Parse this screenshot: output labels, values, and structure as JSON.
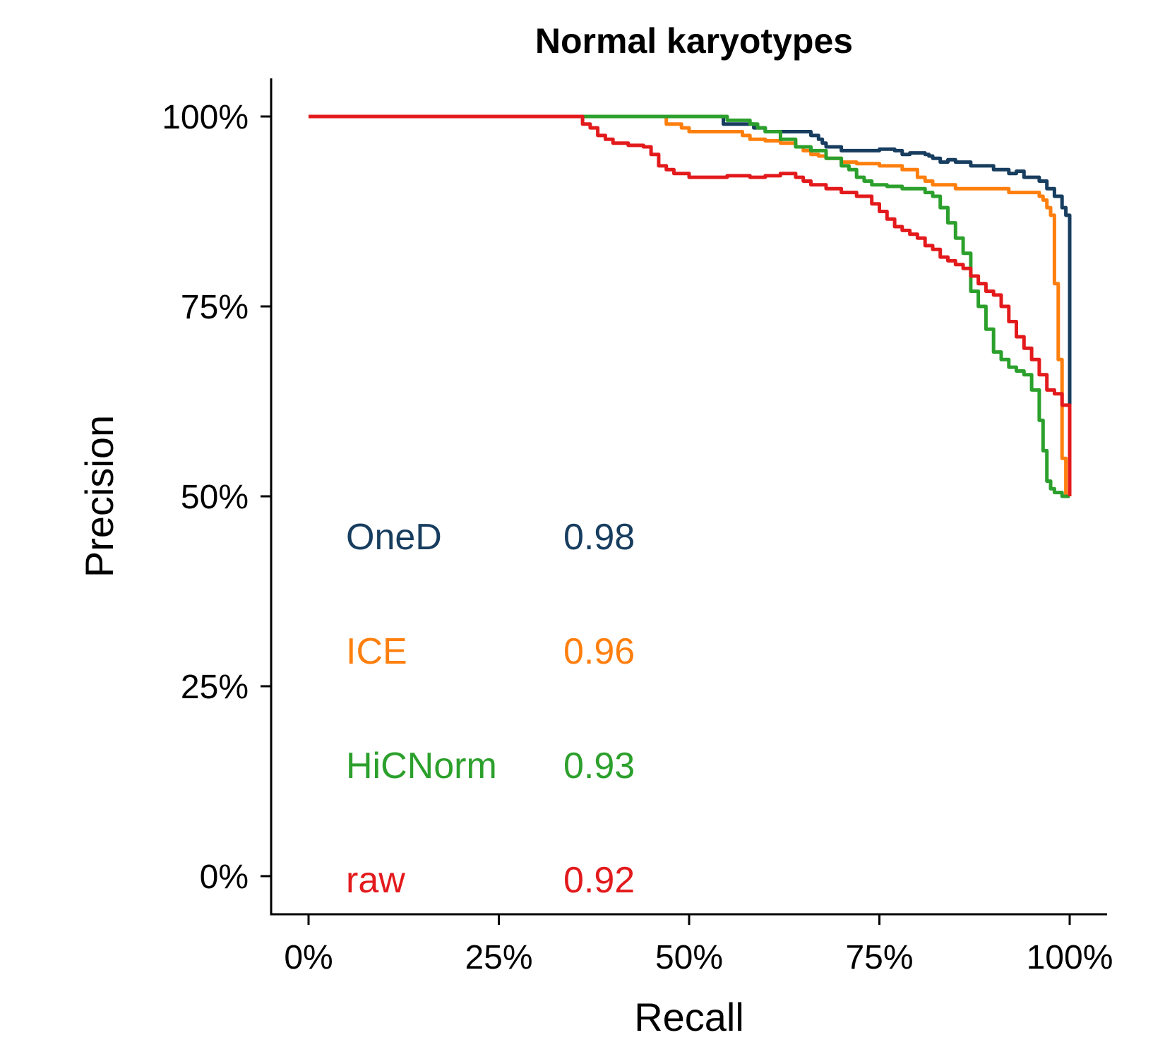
{
  "chart_data": {
    "type": "line",
    "title": "Normal karyotypes",
    "xlabel": "Recall",
    "ylabel": "Precision",
    "xlim": [
      -0.05,
      1.05
    ],
    "ylim": [
      -0.05,
      1.05
    ],
    "x_ticks": [
      0,
      0.25,
      0.5,
      0.75,
      1.0
    ],
    "x_tick_labels": [
      "0%",
      "25%",
      "50%",
      "75%",
      "100%"
    ],
    "y_ticks": [
      0,
      0.25,
      0.5,
      0.75,
      1.0
    ],
    "y_tick_labels": [
      "0%",
      "25%",
      "50%",
      "75%",
      "100%"
    ],
    "grid": false,
    "legend": "none",
    "annotations": [
      {
        "label": "OneD",
        "value": "0.98",
        "color": "#173d5f"
      },
      {
        "label": "ICE",
        "value": "0.96",
        "color": "#ff7f0e"
      },
      {
        "label": "HiCNorm",
        "value": "0.93",
        "color": "#2ca02c"
      },
      {
        "label": "raw",
        "value": "0.92",
        "color": "#e31a1c"
      }
    ],
    "series": [
      {
        "color": "#173d5f",
        "x": [
          0,
          0.1,
          0.2,
          0.3,
          0.4,
          0.5,
          0.54,
          0.545,
          0.58,
          0.585,
          0.6,
          0.605,
          0.65,
          0.66,
          0.67,
          0.675,
          0.68,
          0.69,
          0.7,
          0.72,
          0.75,
          0.77,
          0.78,
          0.79,
          0.81,
          0.815,
          0.82,
          0.83,
          0.84,
          0.85,
          0.86,
          0.87,
          0.89,
          0.9,
          0.91,
          0.92,
          0.93,
          0.94,
          0.95,
          0.96,
          0.97,
          0.975,
          0.98,
          0.99,
          0.995,
          1.0,
          1.0,
          1.0
        ],
        "y": [
          1.0,
          1.0,
          1.0,
          1.0,
          1.0,
          1.0,
          1.0,
          0.99,
          0.99,
          0.985,
          0.98,
          0.98,
          0.98,
          0.975,
          0.97,
          0.965,
          0.96,
          0.96,
          0.955,
          0.955,
          0.957,
          0.955,
          0.95,
          0.952,
          0.95,
          0.948,
          0.945,
          0.94,
          0.943,
          0.94,
          0.94,
          0.935,
          0.935,
          0.93,
          0.93,
          0.925,
          0.928,
          0.92,
          0.92,
          0.915,
          0.905,
          0.905,
          0.895,
          0.88,
          0.87,
          0.86,
          0.6,
          0.5
        ]
      },
      {
        "color": "#ff7f0e",
        "x": [
          0,
          0.1,
          0.2,
          0.3,
          0.4,
          0.46,
          0.47,
          0.49,
          0.5,
          0.55,
          0.57,
          0.58,
          0.6,
          0.62,
          0.64,
          0.65,
          0.66,
          0.67,
          0.68,
          0.7,
          0.72,
          0.75,
          0.78,
          0.8,
          0.81,
          0.82,
          0.83,
          0.85,
          0.87,
          0.9,
          0.92,
          0.95,
          0.96,
          0.965,
          0.97,
          0.975,
          0.98,
          0.985,
          0.99,
          0.995,
          1.0
        ],
        "y": [
          1.0,
          1.0,
          1.0,
          1.0,
          1.0,
          1.0,
          0.99,
          0.985,
          0.98,
          0.98,
          0.975,
          0.97,
          0.968,
          0.965,
          0.96,
          0.955,
          0.95,
          0.948,
          0.945,
          0.94,
          0.938,
          0.935,
          0.93,
          0.92,
          0.915,
          0.91,
          0.91,
          0.905,
          0.905,
          0.905,
          0.9,
          0.9,
          0.895,
          0.89,
          0.88,
          0.87,
          0.78,
          0.68,
          0.55,
          0.5,
          0.5
        ]
      },
      {
        "color": "#2ca02c",
        "x": [
          0,
          0.1,
          0.2,
          0.3,
          0.4,
          0.5,
          0.55,
          0.58,
          0.59,
          0.6,
          0.62,
          0.64,
          0.66,
          0.68,
          0.7,
          0.7,
          0.71,
          0.72,
          0.73,
          0.74,
          0.76,
          0.78,
          0.8,
          0.81,
          0.82,
          0.83,
          0.84,
          0.85,
          0.86,
          0.87,
          0.88,
          0.89,
          0.9,
          0.91,
          0.92,
          0.93,
          0.94,
          0.95,
          0.96,
          0.965,
          0.97,
          0.975,
          0.98,
          0.99,
          1.0
        ],
        "y": [
          1.0,
          1.0,
          1.0,
          1.0,
          1.0,
          1.0,
          0.995,
          0.99,
          0.985,
          0.98,
          0.97,
          0.96,
          0.955,
          0.945,
          0.94,
          0.935,
          0.93,
          0.92,
          0.915,
          0.91,
          0.908,
          0.905,
          0.905,
          0.9,
          0.895,
          0.88,
          0.86,
          0.84,
          0.82,
          0.77,
          0.75,
          0.72,
          0.69,
          0.68,
          0.67,
          0.665,
          0.66,
          0.64,
          0.6,
          0.56,
          0.52,
          0.51,
          0.505,
          0.5,
          0.5
        ]
      },
      {
        "color": "#e31a1c",
        "x": [
          0,
          0.1,
          0.2,
          0.3,
          0.35,
          0.36,
          0.37,
          0.38,
          0.39,
          0.4,
          0.42,
          0.44,
          0.45,
          0.46,
          0.47,
          0.48,
          0.5,
          0.52,
          0.55,
          0.58,
          0.6,
          0.62,
          0.64,
          0.65,
          0.66,
          0.68,
          0.7,
          0.72,
          0.74,
          0.75,
          0.76,
          0.77,
          0.78,
          0.79,
          0.8,
          0.81,
          0.82,
          0.83,
          0.84,
          0.85,
          0.86,
          0.87,
          0.88,
          0.89,
          0.9,
          0.91,
          0.92,
          0.93,
          0.94,
          0.95,
          0.96,
          0.97,
          0.98,
          0.99,
          1.0,
          1.0,
          1.0
        ],
        "y": [
          1.0,
          1.0,
          1.0,
          1.0,
          1.0,
          0.99,
          0.985,
          0.975,
          0.97,
          0.965,
          0.962,
          0.96,
          0.95,
          0.935,
          0.93,
          0.925,
          0.92,
          0.92,
          0.922,
          0.92,
          0.922,
          0.925,
          0.92,
          0.915,
          0.91,
          0.905,
          0.9,
          0.895,
          0.885,
          0.875,
          0.865,
          0.855,
          0.85,
          0.845,
          0.84,
          0.83,
          0.825,
          0.815,
          0.81,
          0.805,
          0.8,
          0.79,
          0.78,
          0.77,
          0.765,
          0.75,
          0.73,
          0.71,
          0.695,
          0.68,
          0.66,
          0.64,
          0.635,
          0.62,
          0.6,
          0.55,
          0.5
        ]
      }
    ]
  }
}
